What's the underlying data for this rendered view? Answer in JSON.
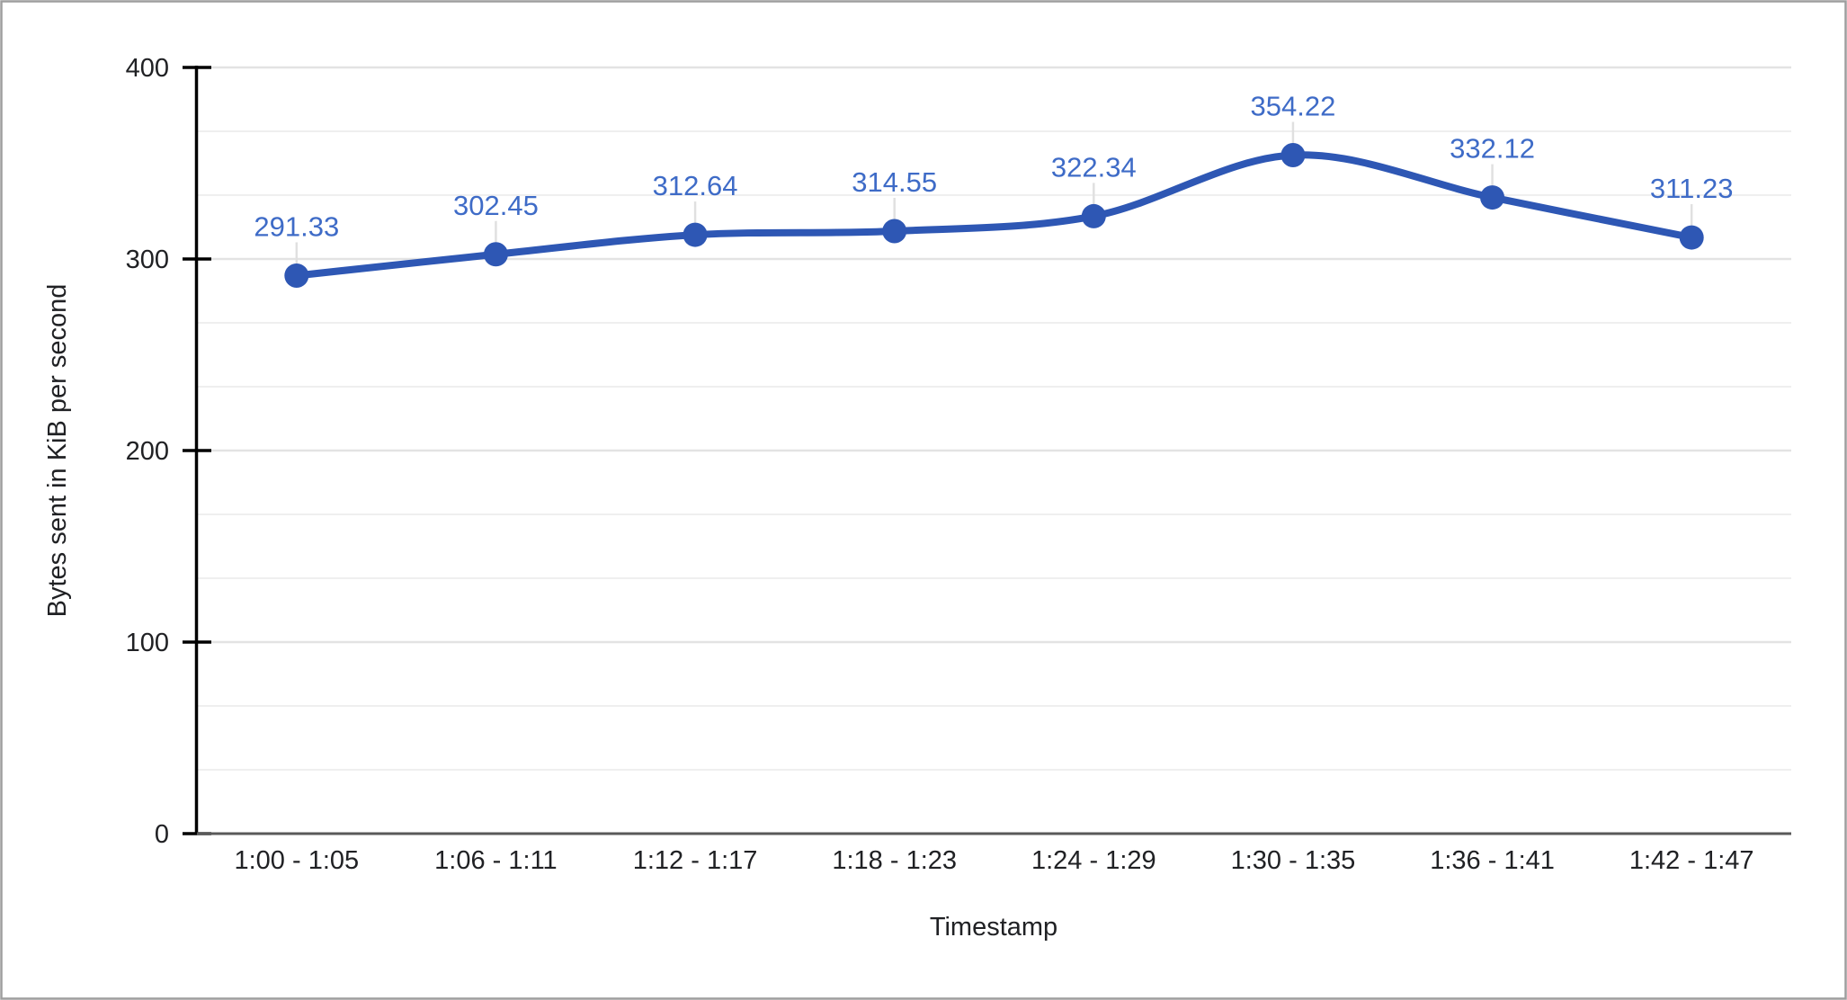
{
  "chart_data": {
    "type": "line",
    "title": "",
    "categories": [
      "1:00 - 1:05",
      "1:06 - 1:11",
      "1:12 - 1:17",
      "1:18 - 1:23",
      "1:24 - 1:29",
      "1:30 - 1:35",
      "1:36 - 1:41",
      "1:42 - 1:47"
    ],
    "series": [
      {
        "name": "Bytes sent",
        "values": [
          291.33,
          302.45,
          312.64,
          314.55,
          322.34,
          354.22,
          332.12,
          311.23
        ],
        "point_labels": [
          "291.33",
          "302.45",
          "312.64",
          "314.55",
          "322.34",
          "354.22",
          "332.12",
          "311.23"
        ]
      }
    ],
    "xlabel": "Timestamp",
    "ylabel": "Bytes sent in KiB per second",
    "ylim": [
      0,
      400
    ],
    "y_major_ticks": [
      0,
      100,
      200,
      300,
      400
    ],
    "y_tick_labels": [
      "0",
      "100",
      "200",
      "300",
      "400"
    ],
    "y_minor_divisions_per_major": 3,
    "grid": true,
    "smooth_line": true,
    "show_point_markers": true,
    "show_data_labels": true,
    "legend_position": "none",
    "style": {
      "series_color": "#2e57b4",
      "data_label_color": "#3e6bc7",
      "axis_line_color": "#000000",
      "baseline_color": "#595959",
      "grid_major_color": "#e3e3e3",
      "grid_minor_color": "#efefef",
      "leader_line_color": "#e0e0e0",
      "text_color": "#202124",
      "frame_border_color": "#9e9e9e",
      "background_color": "#ffffff"
    }
  }
}
